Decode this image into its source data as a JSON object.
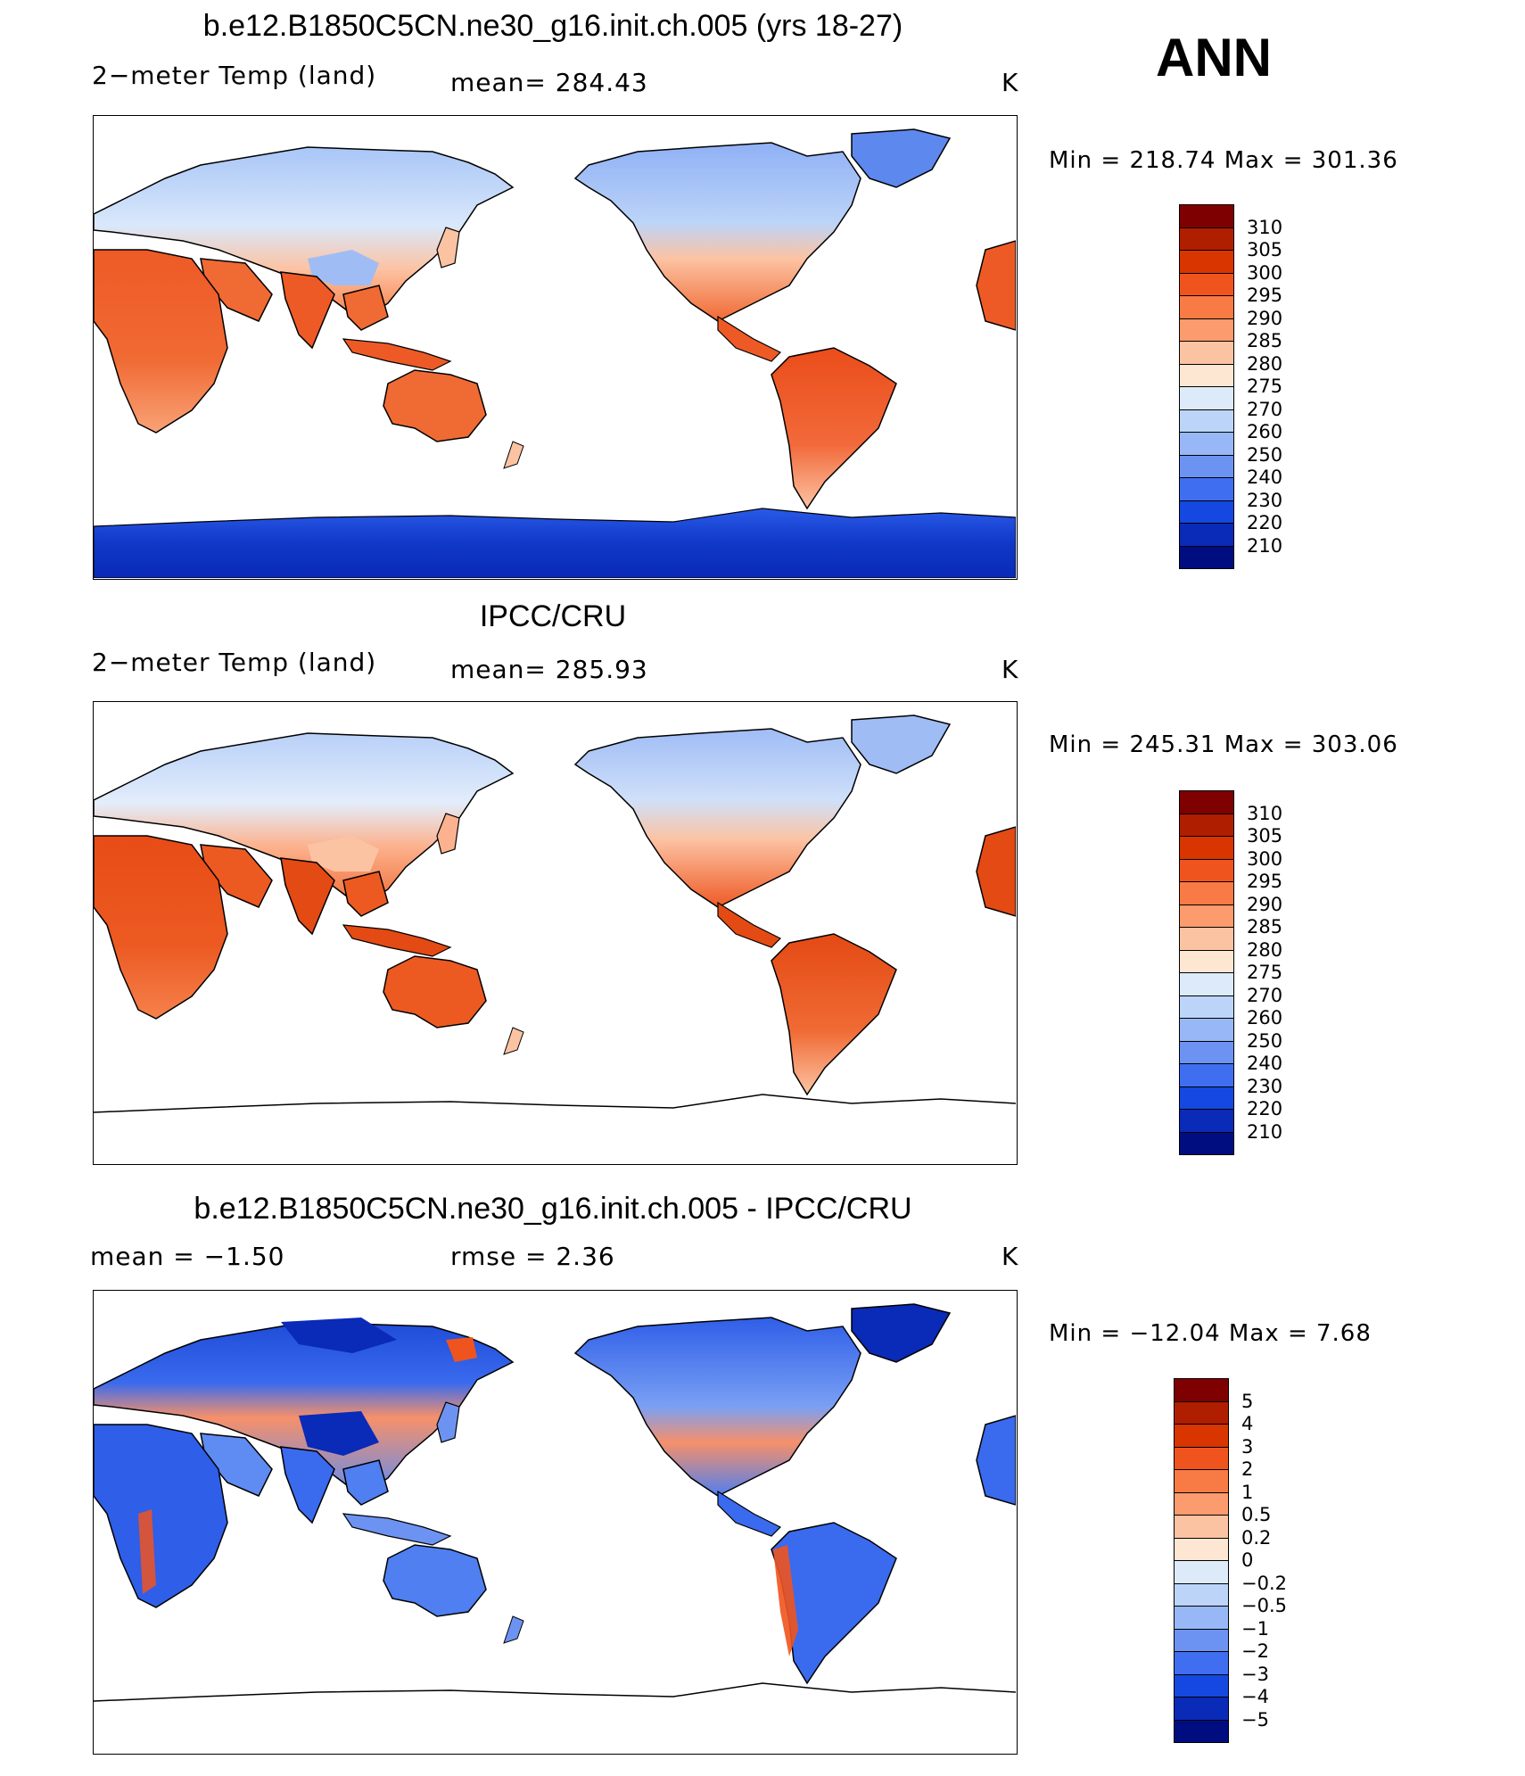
{
  "season": "ANN",
  "panels": [
    {
      "title": "b.e12.B1850C5CN.ne30_g16.init.ch.005 (yrs 18-27)",
      "left_label": "2−meter Temp (land)",
      "middle_label": "mean=  284.43",
      "units": "K",
      "minmax": "Min  =  218.74  Max  =  301.36",
      "kind": "model"
    },
    {
      "title": "IPCC/CRU",
      "left_label": "2−meter Temp (land)",
      "middle_label": "mean=  285.93",
      "units": "K",
      "minmax": "Min  =  245.31  Max  =  303.06",
      "kind": "obs"
    },
    {
      "title": "b.e12.B1850C5CN.ne30_g16.init.ch.005 - IPCC/CRU",
      "left_label": "mean  =    −1.50",
      "middle_label": "rmse  =     2.36",
      "units": "K",
      "minmax": "Min  =  −12.04  Max  =      7.68",
      "kind": "diff"
    }
  ],
  "colorbars": {
    "temperature": {
      "labels": [
        "310",
        "305",
        "300",
        "295",
        "290",
        "285",
        "280",
        "275",
        "270",
        "260",
        "250",
        "240",
        "230",
        "220",
        "210"
      ],
      "colors": [
        "#7f0000",
        "#b01e00",
        "#d83500",
        "#f0541e",
        "#f87a44",
        "#fc9b6e",
        "#fcc3a3",
        "#fde6d2",
        "#dceafa",
        "#bcd4f8",
        "#98b7f6",
        "#6d93f2",
        "#3f6ef0",
        "#1548e0",
        "#0a2ab8",
        "#000d80"
      ]
    },
    "difference": {
      "labels": [
        "5",
        "4",
        "3",
        "2",
        "1",
        "0.5",
        "0.2",
        "0",
        "−0.2",
        "−0.5",
        "−1",
        "−2",
        "−3",
        "−4",
        "−5"
      ],
      "colors": [
        "#7f0000",
        "#b01e00",
        "#d83500",
        "#f0541e",
        "#f87a44",
        "#fc9b6e",
        "#fcc3a3",
        "#fde6d2",
        "#dceafa",
        "#bcd4f8",
        "#98b7f6",
        "#6d93f2",
        "#3f6ef0",
        "#1548e0",
        "#0a2ab8",
        "#000d80"
      ]
    }
  }
}
